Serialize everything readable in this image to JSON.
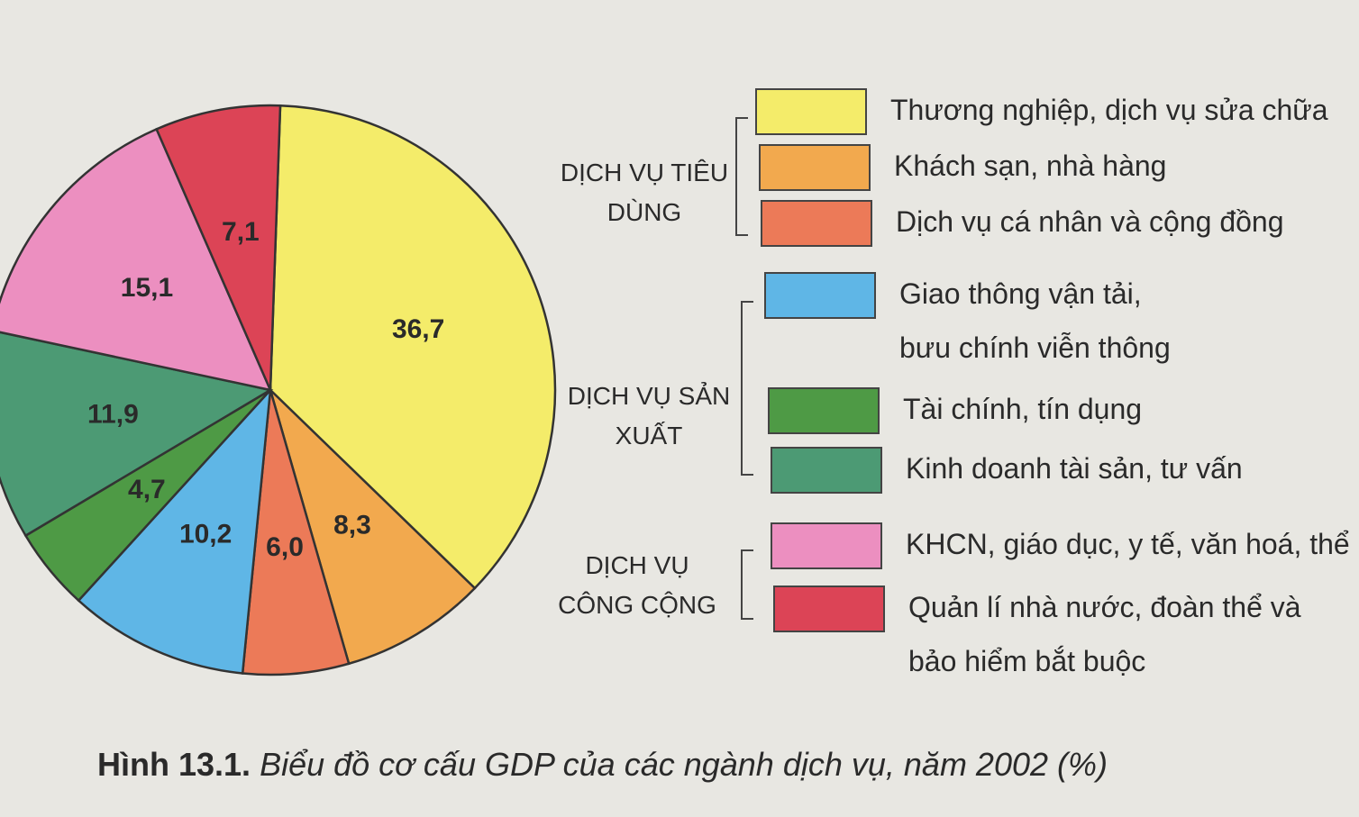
{
  "chart_data": {
    "type": "pie",
    "figure_label": "Hình 13.1.",
    "title": "Biểu đồ cơ cấu GDP của các ngành dịch vụ, năm 2002 (%)",
    "categories": [
      "Thương nghiệp, dịch vụ sửa chữa",
      "Khách sạn, nhà hàng",
      "Dịch vụ cá nhân và cộng đồng",
      "Giao thông vận tải, bưu chính viễn thông",
      "Tài chính, tín dụng",
      "Kinh doanh tài sản, tư vấn",
      "KHCN, giáo dục, y tế, văn hoá, thể",
      "Quản lí nhà nước, đoàn thể và bảo hiểm bắt buộc"
    ],
    "values": [
      36.7,
      8.3,
      6.0,
      10.2,
      4.7,
      11.9,
      15.1,
      7.1
    ],
    "value_labels": [
      "36,7",
      "8,3",
      "6,0",
      "10,2",
      "4,7",
      "11,9",
      "15,1",
      "7,1"
    ],
    "colors": [
      "#f4ec6a",
      "#f2a94e",
      "#ec7a58",
      "#5fb6e6",
      "#4e9a45",
      "#4c9a74",
      "#ec8fc0",
      "#dc4456"
    ],
    "groups": [
      "DỊCH VỤ TIÊU DÙNG",
      "DỊCH VỤ SẢN XUẤT",
      "DỊCH VỤ CÔNG CỘNG"
    ]
  }
}
